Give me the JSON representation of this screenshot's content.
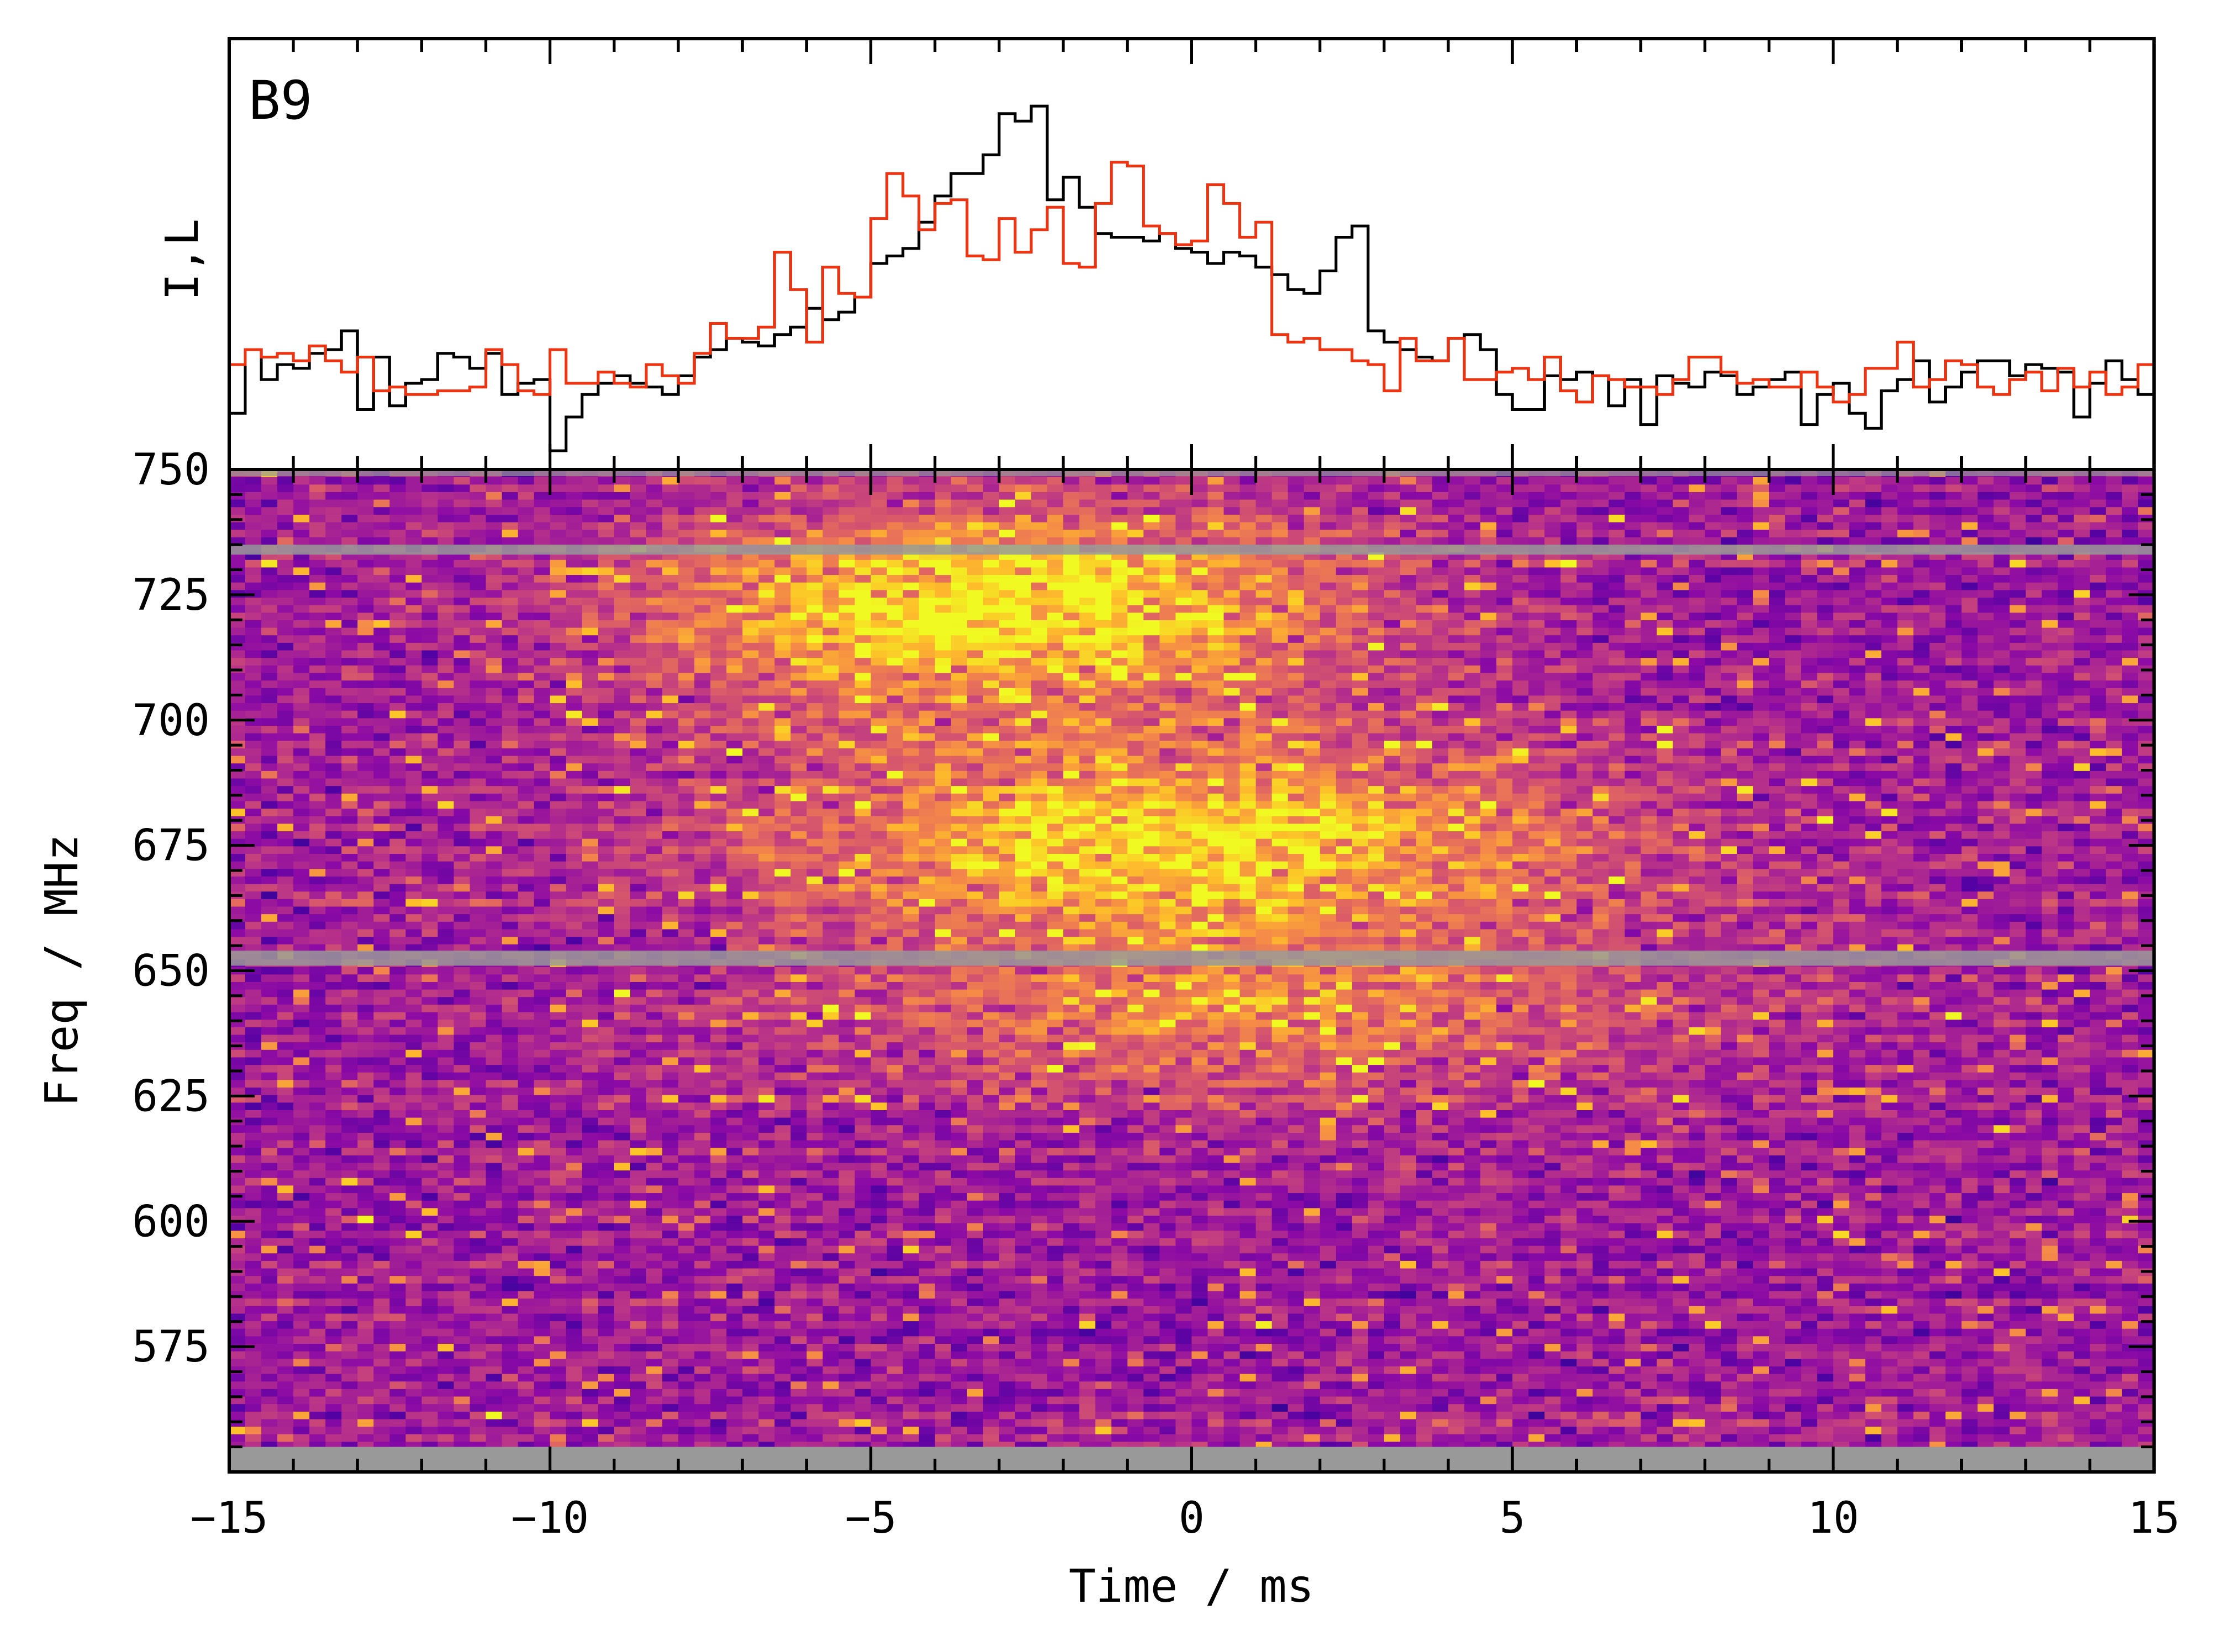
{
  "chart_data": [
    {
      "type": "line",
      "panel_label": "B9",
      "ylabel": "I,L",
      "xlim": [
        -15,
        15
      ],
      "ylim": [
        -0.1,
        1.05
      ],
      "series": [
        {
          "color": "#000000",
          "x": [
            -15.0,
            -14.75,
            -14.5,
            -14.25,
            -14.0,
            -13.75,
            -13.5,
            -13.25,
            -13.0,
            -12.75,
            -12.5,
            -12.25,
            -12.0,
            -11.75,
            -11.5,
            -11.25,
            -11.0,
            -10.75,
            -10.5,
            -10.25,
            -10.0,
            -9.75,
            -9.5,
            -9.25,
            -9.0,
            -8.75,
            -8.5,
            -8.25,
            -8.0,
            -7.75,
            -7.5,
            -7.25,
            -7.0,
            -6.75,
            -6.5,
            -6.25,
            -6.0,
            -5.75,
            -5.5,
            -5.25,
            -5.0,
            -4.75,
            -4.5,
            -4.25,
            -4.0,
            -3.75,
            -3.5,
            -3.25,
            -3.0,
            -2.75,
            -2.5,
            -2.25,
            -2.0,
            -1.75,
            -1.5,
            -1.25,
            -1.0,
            -0.75,
            -0.5,
            -0.25,
            0.0,
            0.25,
            0.5,
            0.75,
            1.0,
            1.25,
            1.5,
            1.75,
            2.0,
            2.25,
            2.5,
            2.75,
            3.0,
            3.25,
            3.5,
            3.75,
            4.0,
            4.25,
            4.5,
            4.75,
            5.0,
            5.25,
            5.5,
            5.75,
            6.0,
            6.25,
            6.5,
            6.75,
            7.0,
            7.25,
            7.5,
            7.75,
            8.0,
            8.25,
            8.5,
            8.75,
            9.0,
            9.25,
            9.5,
            9.75,
            10.0,
            10.25,
            10.5,
            10.75,
            11.0,
            11.25,
            11.5,
            11.75,
            12.0,
            12.25,
            12.5,
            12.75,
            13.0,
            13.25,
            13.5,
            13.75,
            14.0,
            14.25,
            14.5,
            14.75
          ],
          "values": [
            0.05,
            0.22,
            0.14,
            0.18,
            0.17,
            0.21,
            0.22,
            0.27,
            0.06,
            0.2,
            0.07,
            0.13,
            0.14,
            0.21,
            0.2,
            0.17,
            0.21,
            0.1,
            0.13,
            0.14,
            -0.05,
            0.04,
            0.1,
            0.13,
            0.15,
            0.13,
            0.12,
            0.1,
            0.15,
            0.2,
            0.22,
            0.25,
            0.24,
            0.23,
            0.26,
            0.28,
            0.33,
            0.3,
            0.32,
            0.36,
            0.45,
            0.47,
            0.49,
            0.56,
            0.63,
            0.69,
            0.69,
            0.74,
            0.85,
            0.83,
            0.87,
            0.62,
            0.68,
            0.6,
            0.53,
            0.52,
            0.52,
            0.51,
            0.53,
            0.49,
            0.48,
            0.45,
            0.48,
            0.47,
            0.44,
            0.42,
            0.38,
            0.37,
            0.43,
            0.52,
            0.55,
            0.27,
            0.24,
            0.22,
            0.2,
            0.19,
            0.25,
            0.26,
            0.22,
            0.1,
            0.06,
            0.06,
            0.15,
            0.14,
            0.16,
            0.15,
            0.07,
            0.14,
            0.02,
            0.15,
            0.13,
            0.12,
            0.16,
            0.15,
            0.1,
            0.12,
            0.14,
            0.16,
            0.02,
            0.1,
            0.13,
            0.05,
            0.01,
            0.11,
            0.14,
            0.19,
            0.08,
            0.12,
            0.16,
            0.19,
            0.19,
            0.15,
            0.18,
            0.17,
            0.16,
            0.04,
            0.13,
            0.19,
            0.14,
            0.1
          ]
        },
        {
          "color": "#ee3311",
          "x": [
            -15.0,
            -14.75,
            -14.5,
            -14.25,
            -14.0,
            -13.75,
            -13.5,
            -13.25,
            -13.0,
            -12.75,
            -12.5,
            -12.25,
            -12.0,
            -11.75,
            -11.5,
            -11.25,
            -11.0,
            -10.75,
            -10.5,
            -10.25,
            -10.0,
            -9.75,
            -9.5,
            -9.25,
            -9.0,
            -8.75,
            -8.5,
            -8.25,
            -8.0,
            -7.75,
            -7.5,
            -7.25,
            -7.0,
            -6.75,
            -6.5,
            -6.25,
            -6.0,
            -5.75,
            -5.5,
            -5.25,
            -5.0,
            -4.75,
            -4.5,
            -4.25,
            -4.0,
            -3.75,
            -3.5,
            -3.25,
            -3.0,
            -2.75,
            -2.5,
            -2.25,
            -2.0,
            -1.75,
            -1.5,
            -1.25,
            -1.0,
            -0.75,
            -0.5,
            -0.25,
            0.0,
            0.25,
            0.5,
            0.75,
            1.0,
            1.25,
            1.5,
            1.75,
            2.0,
            2.25,
            2.5,
            2.75,
            3.0,
            3.25,
            3.5,
            3.75,
            4.0,
            4.25,
            4.5,
            4.75,
            5.0,
            5.25,
            5.5,
            5.75,
            6.0,
            6.25,
            6.5,
            6.75,
            7.0,
            7.25,
            7.5,
            7.75,
            8.0,
            8.25,
            8.5,
            8.75,
            9.0,
            9.25,
            9.5,
            9.75,
            10.0,
            10.25,
            10.5,
            10.75,
            11.0,
            11.25,
            11.5,
            11.75,
            12.0,
            12.25,
            12.5,
            12.75,
            13.0,
            13.25,
            13.5,
            13.75,
            14.0,
            14.25,
            14.5,
            14.75
          ],
          "values": [
            0.18,
            0.22,
            0.2,
            0.21,
            0.19,
            0.23,
            0.19,
            0.16,
            0.2,
            0.11,
            0.12,
            0.1,
            0.1,
            0.11,
            0.11,
            0.12,
            0.22,
            0.18,
            0.11,
            0.1,
            0.22,
            0.13,
            0.13,
            0.16,
            0.13,
            0.12,
            0.18,
            0.15,
            0.13,
            0.21,
            0.29,
            0.25,
            0.25,
            0.28,
            0.48,
            0.38,
            0.24,
            0.44,
            0.37,
            0.36,
            0.57,
            0.69,
            0.63,
            0.54,
            0.61,
            0.62,
            0.47,
            0.46,
            0.57,
            0.48,
            0.54,
            0.6,
            0.45,
            0.44,
            0.61,
            0.72,
            0.71,
            0.55,
            0.53,
            0.5,
            0.51,
            0.66,
            0.61,
            0.52,
            0.56,
            0.26,
            0.24,
            0.25,
            0.22,
            0.22,
            0.19,
            0.18,
            0.11,
            0.25,
            0.19,
            0.19,
            0.25,
            0.14,
            0.14,
            0.16,
            0.17,
            0.14,
            0.2,
            0.11,
            0.08,
            0.15,
            0.14,
            0.12,
            0.12,
            0.1,
            0.14,
            0.2,
            0.2,
            0.16,
            0.13,
            0.14,
            0.12,
            0.12,
            0.16,
            0.12,
            0.08,
            0.1,
            0.17,
            0.17,
            0.24,
            0.12,
            0.14,
            0.19,
            0.18,
            0.12,
            0.1,
            0.14,
            0.16,
            0.11,
            0.17,
            0.12,
            0.16,
            0.1,
            0.12,
            0.18
          ]
        }
      ]
    },
    {
      "type": "heatmap",
      "xlabel": "Time / ms",
      "ylabel": "Freq / MHz",
      "xlim": [
        -15,
        15
      ],
      "ylim": [
        550,
        750
      ],
      "xticks": [
        "−15",
        "−10",
        "−5",
        "0",
        "5",
        "10",
        "15"
      ],
      "xtick_values": [
        -15,
        -10,
        -5,
        0,
        5,
        10,
        15
      ],
      "yticks": [
        "750",
        "725",
        "700",
        "675",
        "650",
        "625",
        "600",
        "575"
      ],
      "ytick_values": [
        750,
        725,
        700,
        675,
        650,
        625,
        600,
        575
      ],
      "n_time_bins": 120,
      "freq_bin_mhz": 1.5,
      "colormap": [
        "#0d0887",
        "#5302a3",
        "#8b0aa5",
        "#b83289",
        "#db5c68",
        "#f48849",
        "#febd2a",
        "#f0f921"
      ],
      "masked_color": "#999999",
      "masked_bands_mhz": [
        [
          735,
          733
        ],
        [
          654,
          651
        ],
        [
          555,
          550
        ]
      ],
      "emission_regions": [
        {
          "t_center": -3,
          "t_width": 3.8,
          "f_center": 722,
          "f_width": 14,
          "amplitude": 0.75
        },
        {
          "t_center": 0,
          "t_width": 4.5,
          "f_center": 675,
          "f_width": 14,
          "amplitude": 0.65
        },
        {
          "t_center": 1,
          "t_width": 5,
          "f_center": 640,
          "f_width": 12,
          "amplitude": 0.35
        }
      ]
    }
  ]
}
